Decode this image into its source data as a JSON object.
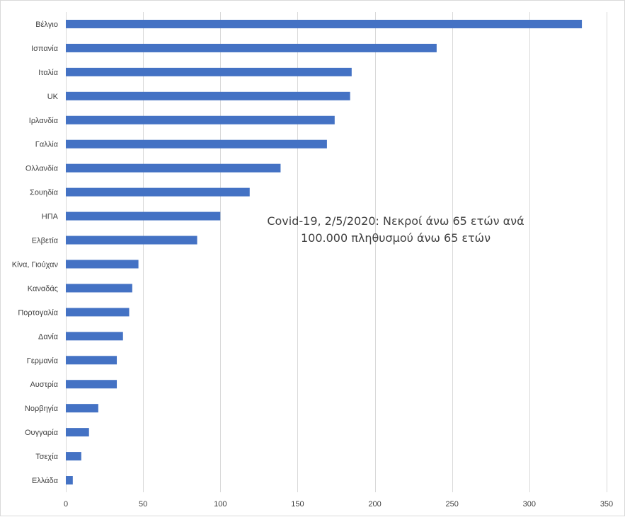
{
  "chart_data": {
    "type": "bar",
    "orientation": "horizontal",
    "title_lines": [
      "Covid-19, 2/5/2020: Νεκροί άνω 65 ετών ανά",
      "100.000 πληθυσμού άνω 65 ετών"
    ],
    "categories": [
      "Βέλγιο",
      "Ισπανία",
      "Ιταλία",
      "UK",
      "Ιρλανδία",
      "Γαλλία",
      "Ολλανδία",
      "Σουηδία",
      "ΗΠΑ",
      "Ελβετία",
      "Κίνα, Γιούχαν",
      "Καναδάς",
      "Πορτογαλία",
      "Δανία",
      "Γερμανία",
      "Αυστρία",
      "Νορβηγία",
      "Ουγγαρία",
      "Τσεχία",
      "Ελλάδα"
    ],
    "values": [
      334,
      240,
      185,
      184,
      174,
      169,
      139,
      119,
      100,
      85,
      47,
      43,
      41,
      37,
      33,
      33,
      21,
      15,
      10,
      4.5
    ],
    "xlim": [
      0,
      350
    ],
    "xticks": [
      0,
      50,
      100,
      150,
      200,
      250,
      300,
      350
    ],
    "xticks_text": [
      "0",
      "50",
      "100",
      "150",
      "200",
      "250",
      "300",
      "350"
    ],
    "grid": "vertical",
    "legend": "none",
    "bar_color": "#4472c4",
    "grid_color": "#d9d9d9"
  }
}
